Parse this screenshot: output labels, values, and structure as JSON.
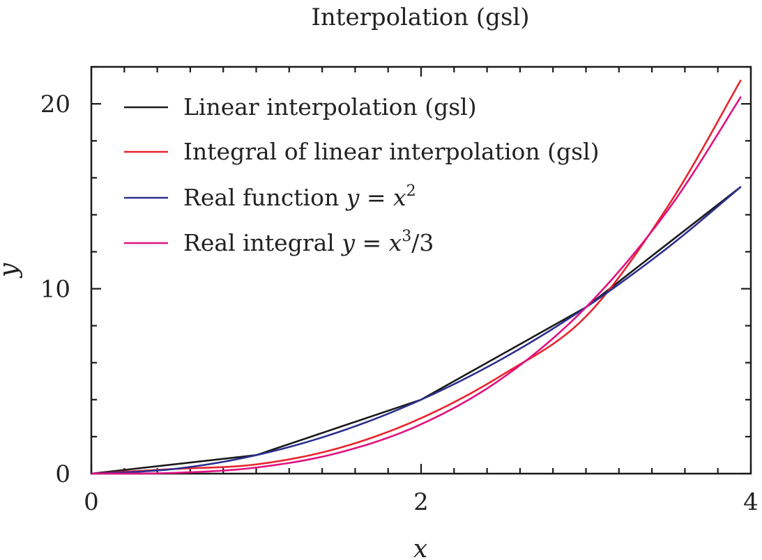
{
  "chart_data": {
    "type": "line",
    "title": "Interpolation (gsl)",
    "xlabel": "x",
    "ylabel": "y",
    "xlim": [
      0,
      4
    ],
    "ylim": [
      0,
      22
    ],
    "x_ticks": [
      0,
      2,
      4
    ],
    "x_tick_labels": [
      "0",
      "2",
      "4"
    ],
    "y_ticks": [
      0,
      10,
      20
    ],
    "y_tick_labels": [
      "0",
      "10",
      "20"
    ],
    "grid": false,
    "legend_position": "top-left",
    "series": [
      {
        "name": "Linear interpolation (gsl)",
        "color": "#1a1a1a",
        "x": [
          0,
          1,
          2,
          3,
          3.94
        ],
        "y": [
          0,
          1,
          4,
          9,
          15.52
        ]
      },
      {
        "name": "Integral of linear interpolation (gsl)",
        "color": "#e8242b",
        "x": [
          0,
          0.5,
          1,
          1.5,
          2,
          2.5,
          3,
          3.5,
          3.94
        ],
        "y": [
          0,
          0.25,
          0.5,
          1.38,
          3.0,
          5.38,
          8.5,
          14.5,
          21.3
        ]
      },
      {
        "name": "Real function y = x^2",
        "color": "#2b2f8f",
        "x": [
          0,
          0.5,
          1,
          1.5,
          2,
          2.5,
          3,
          3.5,
          3.94
        ],
        "y": [
          0,
          0.25,
          1,
          2.25,
          4,
          6.25,
          9,
          12.25,
          15.52
        ]
      },
      {
        "name": "Real integral y = x^3/3",
        "color": "#e0107f",
        "x": [
          0,
          0.5,
          1,
          1.5,
          2,
          2.5,
          3,
          3.5,
          3.94
        ],
        "y": [
          0,
          0.04,
          0.33,
          1.13,
          2.67,
          5.21,
          9.0,
          14.29,
          20.39
        ]
      }
    ],
    "legend": [
      {
        "text": "Linear interpolation (gsl)",
        "prefix": "",
        "math": "",
        "power": "",
        "suffix": "",
        "color": "#1a1a1a"
      },
      {
        "text": "Integral of linear interpolation (gsl)",
        "prefix": "",
        "math": "",
        "power": "",
        "suffix": "",
        "color": "#e8242b"
      },
      {
        "text": "",
        "prefix": "Real function ",
        "math": "y = x",
        "power": "2",
        "suffix": "",
        "color": "#2b2f8f"
      },
      {
        "text": "",
        "prefix": "Real integral ",
        "math": "y = x",
        "power": "3",
        "suffix": "/3",
        "color": "#e0107f"
      }
    ]
  }
}
